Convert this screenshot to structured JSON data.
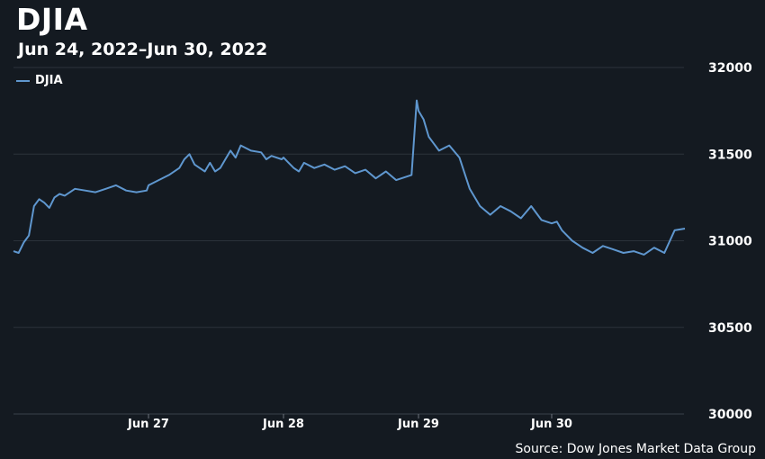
{
  "chart_data": {
    "type": "line",
    "title": "DJIA",
    "subtitle": "Jun 24, 2022–Jun 30, 2022",
    "source": "Source: Dow Jones Market Data Group",
    "legend": {
      "position": "top-left",
      "entries": [
        "DJIA"
      ]
    },
    "xlabel": "",
    "ylabel": "",
    "x_tick_labels": [
      "Jun 27",
      "Jun 28",
      "Jun 29",
      "Jun 30"
    ],
    "y_tick_labels": [
      "30000",
      "30500",
      "31000",
      "31500",
      "32000"
    ],
    "ylim": [
      30000,
      32000
    ],
    "grid": true,
    "colors": {
      "background": "#141a21",
      "grid": "#2b323a",
      "line": "#5f97cf",
      "text": "#ffffff"
    },
    "series": [
      {
        "name": "DJIA",
        "points": [
          [
            "Jun 24 09:30",
            30940
          ],
          [
            "Jun 24 09:45",
            30930
          ],
          [
            "Jun 24 10:00",
            30990
          ],
          [
            "Jun 24 10:15",
            31030
          ],
          [
            "Jun 24 10:30",
            31200
          ],
          [
            "Jun 24 10:45",
            31240
          ],
          [
            "Jun 24 11:00",
            31220
          ],
          [
            "Jun 24 11:15",
            31190
          ],
          [
            "Jun 24 11:30",
            31250
          ],
          [
            "Jun 24 11:45",
            31270
          ],
          [
            "Jun 24 12:00",
            31260
          ],
          [
            "Jun 24 12:30",
            31300
          ],
          [
            "Jun 24 13:00",
            31290
          ],
          [
            "Jun 24 13:30",
            31280
          ],
          [
            "Jun 24 14:00",
            31300
          ],
          [
            "Jun 24 14:30",
            31320
          ],
          [
            "Jun 24 15:00",
            31290
          ],
          [
            "Jun 24 15:30",
            31280
          ],
          [
            "Jun 24 16:00",
            31290
          ],
          [
            "Jun 27 09:30",
            31320
          ],
          [
            "Jun 27 10:00",
            31350
          ],
          [
            "Jun 27 10:30",
            31380
          ],
          [
            "Jun 27 11:00",
            31420
          ],
          [
            "Jun 27 11:15",
            31470
          ],
          [
            "Jun 27 11:30",
            31500
          ],
          [
            "Jun 27 11:45",
            31440
          ],
          [
            "Jun 27 12:00",
            31420
          ],
          [
            "Jun 27 12:15",
            31400
          ],
          [
            "Jun 27 12:30",
            31450
          ],
          [
            "Jun 27 12:45",
            31400
          ],
          [
            "Jun 27 13:00",
            31420
          ],
          [
            "Jun 27 13:15",
            31470
          ],
          [
            "Jun 27 13:30",
            31520
          ],
          [
            "Jun 27 13:45",
            31480
          ],
          [
            "Jun 27 14:00",
            31550
          ],
          [
            "Jun 27 14:30",
            31520
          ],
          [
            "Jun 27 15:00",
            31510
          ],
          [
            "Jun 27 15:15",
            31470
          ],
          [
            "Jun 27 15:30",
            31490
          ],
          [
            "Jun 27 16:00",
            31470
          ],
          [
            "Jun 28 09:30",
            31480
          ],
          [
            "Jun 28 09:45",
            31450
          ],
          [
            "Jun 28 10:00",
            31420
          ],
          [
            "Jun 28 10:15",
            31400
          ],
          [
            "Jun 28 10:30",
            31450
          ],
          [
            "Jun 28 11:00",
            31420
          ],
          [
            "Jun 28 11:30",
            31440
          ],
          [
            "Jun 28 12:00",
            31410
          ],
          [
            "Jun 28 12:30",
            31430
          ],
          [
            "Jun 28 13:00",
            31390
          ],
          [
            "Jun 28 13:30",
            31410
          ],
          [
            "Jun 28 14:00",
            31360
          ],
          [
            "Jun 28 14:30",
            31400
          ],
          [
            "Jun 28 15:00",
            31350
          ],
          [
            "Jun 28 15:45",
            31380
          ],
          [
            "Jun 28 16:00",
            31810
          ],
          [
            "Jun 29 09:30",
            31750
          ],
          [
            "Jun 29 09:45",
            31700
          ],
          [
            "Jun 29 10:00",
            31600
          ],
          [
            "Jun 29 10:15",
            31560
          ],
          [
            "Jun 29 10:30",
            31520
          ],
          [
            "Jun 29 11:00",
            31550
          ],
          [
            "Jun 29 11:30",
            31480
          ],
          [
            "Jun 29 12:00",
            31300
          ],
          [
            "Jun 29 12:15",
            31250
          ],
          [
            "Jun 29 12:30",
            31200
          ],
          [
            "Jun 29 13:00",
            31150
          ],
          [
            "Jun 29 13:30",
            31200
          ],
          [
            "Jun 29 14:00",
            31170
          ],
          [
            "Jun 29 14:30",
            31130
          ],
          [
            "Jun 29 15:00",
            31200
          ],
          [
            "Jun 29 15:30",
            31120
          ],
          [
            "Jun 29 16:00",
            31100
          ],
          [
            "Jun 30 09:30",
            31100
          ],
          [
            "Jun 30 09:45",
            31110
          ],
          [
            "Jun 30 10:00",
            31060
          ],
          [
            "Jun 30 10:30",
            31000
          ],
          [
            "Jun 30 11:00",
            30960
          ],
          [
            "Jun 30 11:30",
            30930
          ],
          [
            "Jun 30 12:00",
            30970
          ],
          [
            "Jun 30 12:30",
            30950
          ],
          [
            "Jun 30 13:00",
            30930
          ],
          [
            "Jun 30 13:30",
            30940
          ],
          [
            "Jun 30 14:00",
            30920
          ],
          [
            "Jun 30 14:30",
            30960
          ],
          [
            "Jun 30 15:00",
            30930
          ],
          [
            "Jun 30 15:30",
            31060
          ],
          [
            "Jun 30 16:00",
            31070
          ]
        ]
      }
    ]
  }
}
